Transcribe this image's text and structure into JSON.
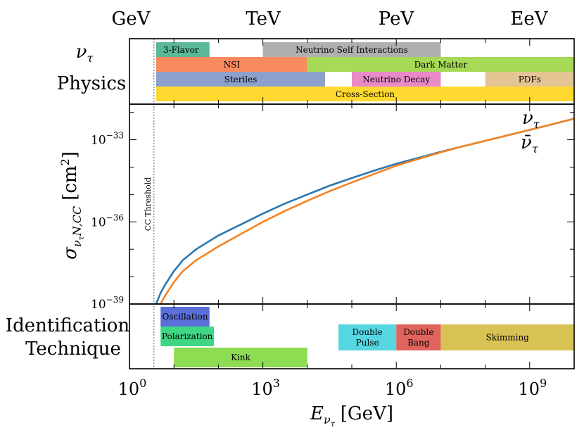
{
  "chart_data": {
    "type": "line",
    "energy_scale_labels": [
      "GeV",
      "TeV",
      "PeV",
      "EeV"
    ],
    "x_axis": {
      "label_main": "E",
      "label_sub": "ν",
      "label_subsub": "τ",
      "label_unit": "[GeV]",
      "scale": "log",
      "xlim_log10": [
        0,
        10
      ],
      "ticks": [
        {
          "base": "10",
          "exp": "0",
          "log10": 0
        },
        {
          "base": "10",
          "exp": "3",
          "log10": 3
        },
        {
          "base": "10",
          "exp": "6",
          "log10": 6
        },
        {
          "base": "10",
          "exp": "9",
          "log10": 9
        }
      ]
    },
    "physics_panel": {
      "title_line1": "ν",
      "title_sub": "τ",
      "title_line2": "Physics",
      "bars": [
        {
          "label": "3-Flavor",
          "row": 0,
          "x_log10": [
            0.6,
            1.8
          ],
          "color": "#5bb896",
          "align": "left"
        },
        {
          "label": "Neutrino Self Interactions",
          "row": 0,
          "x_log10": [
            3.0,
            7.0
          ],
          "color": "#b0b0b0",
          "align": "center"
        },
        {
          "label": "NSI",
          "row": 1,
          "x_log10": [
            0.6,
            4.0
          ],
          "color": "#fb8a5e",
          "align": "center"
        },
        {
          "label": "Dark Matter",
          "row": 1,
          "x_log10": [
            4.0,
            10.0
          ],
          "color": "#a6d955",
          "align": "center"
        },
        {
          "label": "Steriles",
          "row": 2,
          "x_log10": [
            0.6,
            4.4
          ],
          "color": "#8da0cb",
          "align": "center"
        },
        {
          "label": "Neutrino Decay",
          "row": 2,
          "x_log10": [
            5.0,
            7.0
          ],
          "color": "#e98ac7",
          "align": "center"
        },
        {
          "label": "PDFs",
          "row": 2,
          "x_log10": [
            8.0,
            10.0
          ],
          "color": "#e5c494",
          "align": "center"
        },
        {
          "label": "Cross-Section",
          "row": 3,
          "x_log10": [
            0.6,
            10.0
          ],
          "color": "#ffd92f",
          "align": "center"
        }
      ]
    },
    "cross_section_panel": {
      "ylabel_main": "σ",
      "ylabel_sub": "ν",
      "ylabel_subsub": "τ",
      "ylabel_sub2": "N,CC",
      "ylabel_unit": "[cm",
      "ylabel_unit_exp": "2",
      "ylabel_unit_close": "]",
      "ylim_log10": [
        -39,
        -31.7
      ],
      "yticks": [
        {
          "base": "10",
          "exp": "−39",
          "log10": -39
        },
        {
          "base": "10",
          "exp": "−36",
          "log10": -36
        },
        {
          "base": "10",
          "exp": "−33",
          "log10": -33
        }
      ],
      "threshold": {
        "label": "CC Threshold",
        "x_log10": 0.55
      },
      "series": [
        {
          "name": "ν",
          "name_sub": "τ",
          "color": "#2a78b0",
          "x_log10": [
            0.6,
            0.7,
            0.8,
            0.9,
            1.0,
            1.2,
            1.5,
            2.0,
            2.5,
            3.0,
            3.5,
            4.0,
            4.5,
            5.0,
            5.5,
            6.0,
            6.5,
            7.0,
            7.5,
            8.0,
            8.5,
            9.0,
            9.5,
            10.0
          ],
          "y_log10": [
            -39.0,
            -38.6,
            -38.3,
            -38.05,
            -37.8,
            -37.4,
            -37.0,
            -36.5,
            -36.1,
            -35.7,
            -35.33,
            -35.0,
            -34.68,
            -34.4,
            -34.13,
            -33.88,
            -33.66,
            -33.44,
            -33.24,
            -33.04,
            -32.84,
            -32.64,
            -32.44,
            -32.23
          ]
        },
        {
          "name": "ν̄",
          "name_sub": "τ",
          "color": "#f58220",
          "x_log10": [
            0.7,
            0.8,
            0.9,
            1.0,
            1.2,
            1.5,
            2.0,
            2.5,
            3.0,
            3.5,
            4.0,
            4.5,
            5.0,
            5.5,
            6.0,
            6.5,
            7.0,
            7.5,
            8.0,
            8.5,
            9.0,
            9.5,
            10.0
          ],
          "y_log10": [
            -39.0,
            -38.7,
            -38.45,
            -38.2,
            -37.8,
            -37.4,
            -36.9,
            -36.45,
            -36.0,
            -35.6,
            -35.23,
            -34.88,
            -34.56,
            -34.25,
            -33.95,
            -33.7,
            -33.46,
            -33.24,
            -33.04,
            -32.84,
            -32.64,
            -32.44,
            -32.23
          ]
        }
      ]
    },
    "technique_panel": {
      "title_line1": "Identification",
      "title_line2": "Technique",
      "bars": [
        {
          "label": "Oscillation",
          "row": 0,
          "x_log10": [
            0.7,
            1.8
          ],
          "color": "#5b6fd9",
          "lines": [
            "Oscillation"
          ]
        },
        {
          "label": "Polarization",
          "row": 1,
          "x_log10": [
            0.7,
            1.9
          ],
          "color": "#3fd684",
          "lines": [
            "Polarization"
          ]
        },
        {
          "label": "Kink",
          "row": 2,
          "x_log10": [
            1.0,
            4.0
          ],
          "color": "#8ddc52",
          "lines": [
            "Kink"
          ]
        },
        {
          "label": "Double Pulse",
          "row": 1,
          "x_log10": [
            4.7,
            6.0
          ],
          "color": "#56d6e0",
          "lines": [
            "Double",
            "Pulse"
          ]
        },
        {
          "label": "Double Bang",
          "row": 1,
          "x_log10": [
            6.0,
            7.0
          ],
          "color": "#e0645e",
          "lines": [
            "Double",
            "Bang"
          ]
        },
        {
          "label": "Skimming",
          "row": 1,
          "x_log10": [
            7.0,
            10.0
          ],
          "color": "#d8c253",
          "lines": [
            "Skimming"
          ]
        }
      ]
    }
  }
}
